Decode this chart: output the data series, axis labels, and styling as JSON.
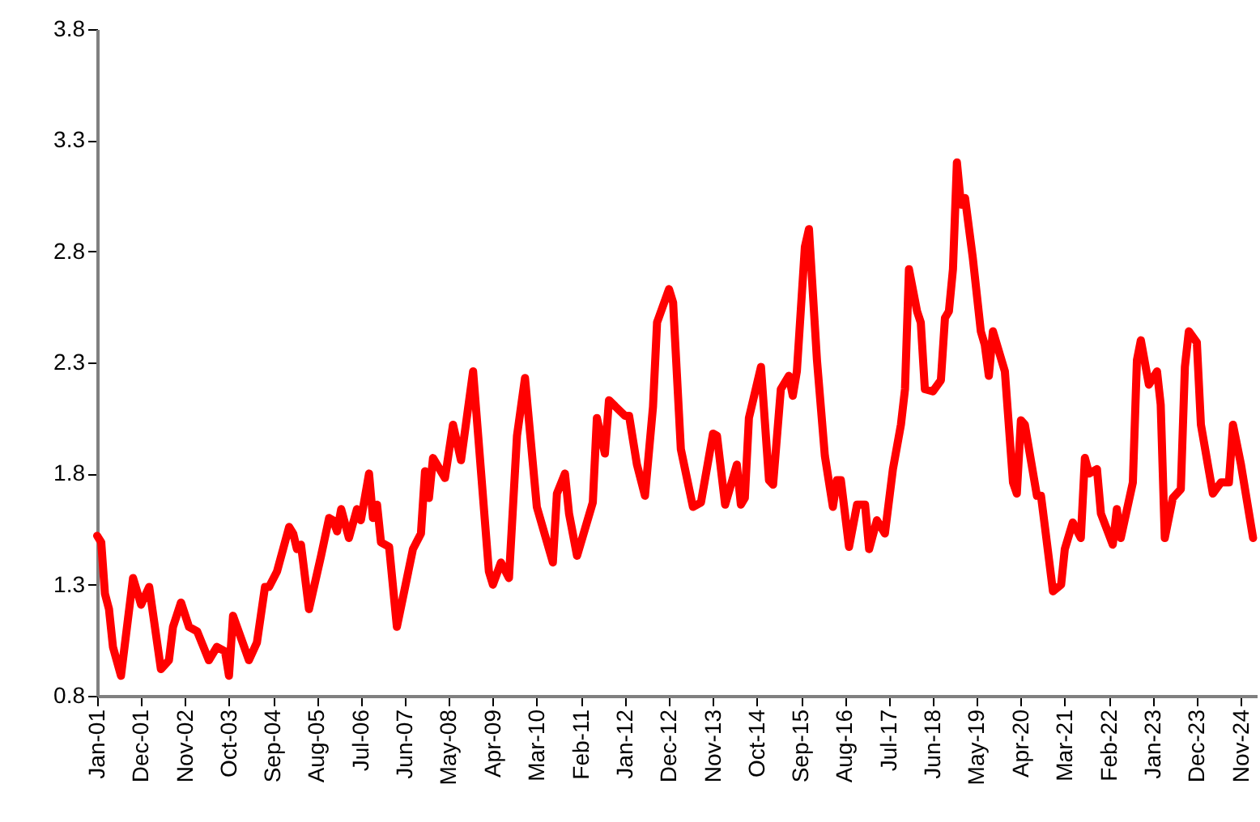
{
  "chart_data": {
    "type": "line",
    "x": [
      "2001-01",
      "2001-02",
      "2001-03",
      "2001-04",
      "2001-05",
      "2001-07",
      "2001-10",
      "2001-12",
      "2002-02",
      "2002-05",
      "2002-07",
      "2002-08",
      "2002-10",
      "2002-12",
      "2003-02",
      "2003-05",
      "2003-07",
      "2003-09",
      "2003-10",
      "2003-11",
      "2004-03",
      "2004-05",
      "2004-07",
      "2004-08",
      "2004-10",
      "2005-01",
      "2005-02",
      "2005-03",
      "2005-04",
      "2005-06",
      "2005-09",
      "2005-11",
      "2005-12",
      "2006-01",
      "2006-02",
      "2006-04",
      "2006-06",
      "2006-07",
      "2006-09",
      "2006-10",
      "2006-11",
      "2006-12",
      "2007-02",
      "2007-04",
      "2007-08",
      "2007-10",
      "2007-11",
      "2007-12",
      "2008-01",
      "2008-04",
      "2008-06",
      "2008-08",
      "2008-11",
      "2009-03",
      "2009-04",
      "2009-06",
      "2009-08",
      "2009-10",
      "2009-12",
      "2010-03",
      "2010-07",
      "2010-08",
      "2010-10",
      "2010-11",
      "2011-01",
      "2011-05",
      "2011-06",
      "2011-08",
      "2011-09",
      "2012-01",
      "2012-02",
      "2012-04",
      "2012-06",
      "2012-08",
      "2012-09",
      "2012-12",
      "2013-01",
      "2013-03",
      "2013-06",
      "2013-08",
      "2013-11",
      "2013-12",
      "2014-02",
      "2014-05",
      "2014-06",
      "2014-07",
      "2014-08",
      "2014-11",
      "2015-01",
      "2015-02",
      "2015-04",
      "2015-06",
      "2015-07",
      "2015-08",
      "2015-10",
      "2015-11",
      "2016-01",
      "2016-03",
      "2016-05",
      "2016-06",
      "2016-07",
      "2016-09",
      "2016-11",
      "2017-01",
      "2017-02",
      "2017-04",
      "2017-06",
      "2017-08",
      "2017-10",
      "2017-11",
      "2017-12",
      "2018-02",
      "2018-03",
      "2018-04",
      "2018-06",
      "2018-08",
      "2018-09",
      "2018-10",
      "2018-11",
      "2018-12",
      "2019-01",
      "2019-02",
      "2019-04",
      "2019-06",
      "2019-07",
      "2019-08",
      "2019-09",
      "2019-12",
      "2020-02",
      "2020-03",
      "2020-04",
      "2020-05",
      "2020-08",
      "2020-09",
      "2020-10",
      "2020-12",
      "2021-02",
      "2021-03",
      "2021-05",
      "2021-07",
      "2021-08",
      "2021-09",
      "2021-11",
      "2021-12",
      "2022-03",
      "2022-04",
      "2022-05",
      "2022-08",
      "2022-09",
      "2022-10",
      "2022-12",
      "2023-02",
      "2023-03",
      "2023-04",
      "2023-06",
      "2023-08",
      "2023-09",
      "2023-10",
      "2023-12",
      "2024-01",
      "2024-04",
      "2024-06",
      "2024-08",
      "2024-09",
      "2024-11",
      "2025-02"
    ],
    "series": [
      {
        "color": "#ff0000",
        "values": [
          1.52,
          1.49,
          1.26,
          1.19,
          1.02,
          0.89,
          1.33,
          1.21,
          1.29,
          0.92,
          0.96,
          1.11,
          1.22,
          1.11,
          1.09,
          0.96,
          1.02,
          1.0,
          0.89,
          1.16,
          0.96,
          1.04,
          1.29,
          1.29,
          1.36,
          1.56,
          1.53,
          1.46,
          1.48,
          1.19,
          1.43,
          1.6,
          1.59,
          1.54,
          1.64,
          1.51,
          1.64,
          1.59,
          1.8,
          1.6,
          1.66,
          1.49,
          1.47,
          1.11,
          1.46,
          1.53,
          1.81,
          1.69,
          1.87,
          1.78,
          2.02,
          1.86,
          2.26,
          1.36,
          1.3,
          1.4,
          1.33,
          1.97,
          2.23,
          1.65,
          1.4,
          1.71,
          1.8,
          1.62,
          1.43,
          1.67,
          2.05,
          1.89,
          2.13,
          2.06,
          2.06,
          1.84,
          1.7,
          2.1,
          2.48,
          2.63,
          2.57,
          1.91,
          1.65,
          1.67,
          1.98,
          1.97,
          1.66,
          1.84,
          1.66,
          1.69,
          2.05,
          2.28,
          1.77,
          1.75,
          2.18,
          2.24,
          2.15,
          2.26,
          2.82,
          2.9,
          2.31,
          1.88,
          1.65,
          1.77,
          1.77,
          1.47,
          1.66,
          1.66,
          1.46,
          1.59,
          1.53,
          1.82,
          2.02,
          2.18,
          2.72,
          2.53,
          2.48,
          2.18,
          2.17,
          2.22,
          2.5,
          2.53,
          2.72,
          3.2,
          3.01,
          3.04,
          2.77,
          2.44,
          2.38,
          2.24,
          2.44,
          2.26,
          1.76,
          1.71,
          2.04,
          2.02,
          1.7,
          1.7,
          1.56,
          1.27,
          1.3,
          1.46,
          1.58,
          1.51,
          1.87,
          1.8,
          1.82,
          1.62,
          1.48,
          1.64,
          1.51,
          1.76,
          2.31,
          2.4,
          2.2,
          2.26,
          2.11,
          1.51,
          1.69,
          1.73,
          2.28,
          2.44,
          2.39,
          2.02,
          1.71,
          1.76,
          1.76,
          2.02,
          1.84,
          1.51
        ]
      }
    ],
    "xlim": [
      "2001-01",
      "2025-03"
    ],
    "xticks": [
      {
        "value": "2001-01",
        "label": "Jan-01"
      },
      {
        "value": "2001-12",
        "label": "Dec-01"
      },
      {
        "value": "2002-11",
        "label": "Nov-02"
      },
      {
        "value": "2003-10",
        "label": "Oct-03"
      },
      {
        "value": "2004-09",
        "label": "Sep-04"
      },
      {
        "value": "2005-08",
        "label": "Aug-05"
      },
      {
        "value": "2006-07",
        "label": "Jul-06"
      },
      {
        "value": "2007-06",
        "label": "Jun-07"
      },
      {
        "value": "2008-05",
        "label": "May-08"
      },
      {
        "value": "2009-04",
        "label": "Apr-09"
      },
      {
        "value": "2010-03",
        "label": "Mar-10"
      },
      {
        "value": "2011-02",
        "label": "Feb-11"
      },
      {
        "value": "2012-01",
        "label": "Jan-12"
      },
      {
        "value": "2012-12",
        "label": "Dec-12"
      },
      {
        "value": "2013-11",
        "label": "Nov-13"
      },
      {
        "value": "2014-10",
        "label": "Oct-14"
      },
      {
        "value": "2015-09",
        "label": "Sep-15"
      },
      {
        "value": "2016-08",
        "label": "Aug-16"
      },
      {
        "value": "2017-07",
        "label": "Jul-17"
      },
      {
        "value": "2018-06",
        "label": "Jun-18"
      },
      {
        "value": "2019-05",
        "label": "May-19"
      },
      {
        "value": "2020-04",
        "label": "Apr-20"
      },
      {
        "value": "2021-03",
        "label": "Mar-21"
      },
      {
        "value": "2022-02",
        "label": "Feb-22"
      },
      {
        "value": "2023-01",
        "label": "Jan-23"
      },
      {
        "value": "2023-12",
        "label": "Dec-23"
      },
      {
        "value": "2024-11",
        "label": "Nov-24"
      }
    ],
    "ylim": [
      0.8,
      3.8
    ],
    "yticks": [
      0.8,
      1.3,
      1.8,
      2.3,
      2.8,
      3.3,
      3.8
    ]
  }
}
